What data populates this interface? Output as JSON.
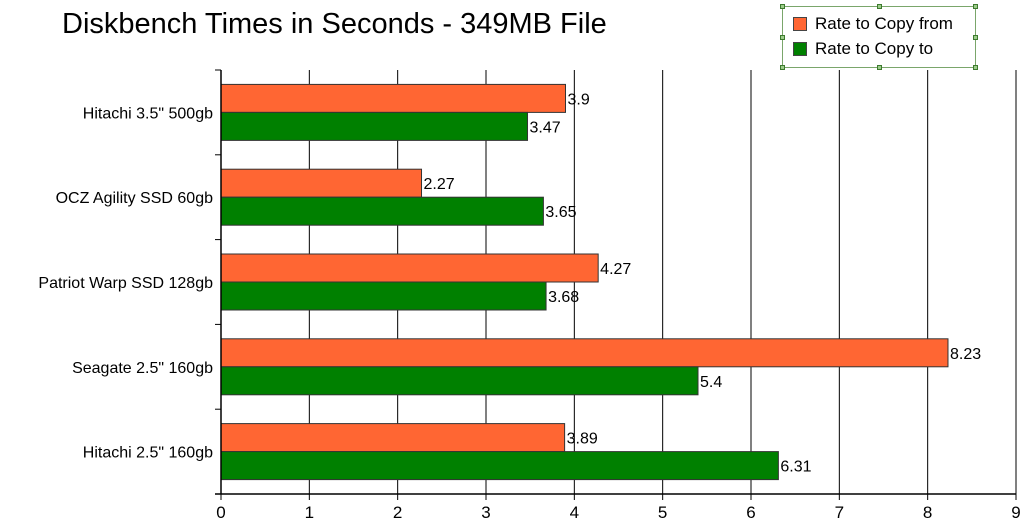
{
  "chart_data": {
    "type": "bar",
    "orientation": "horizontal",
    "title": "Diskbench Times in Seconds - 349MB File",
    "categories": [
      "Hitachi 3.5\" 500gb",
      "OCZ Agility SSD 60gb",
      "Patriot Warp SSD 128gb",
      "Seagate 2.5\" 160gb",
      "Hitachi 2.5\" 160gb"
    ],
    "series": [
      {
        "name": "Rate to Copy from",
        "color": "#ff6633",
        "values": [
          3.9,
          2.27,
          4.27,
          8.23,
          3.89
        ]
      },
      {
        "name": "Rate to Copy to",
        "color": "#008000",
        "values": [
          3.47,
          3.65,
          3.68,
          5.4,
          6.31
        ]
      }
    ],
    "xlim": [
      0,
      9
    ],
    "xticks": [
      "0",
      "1",
      "2",
      "3",
      "4",
      "5",
      "6",
      "7",
      "8",
      "9"
    ],
    "grid": true,
    "legend_position": "top-right"
  }
}
